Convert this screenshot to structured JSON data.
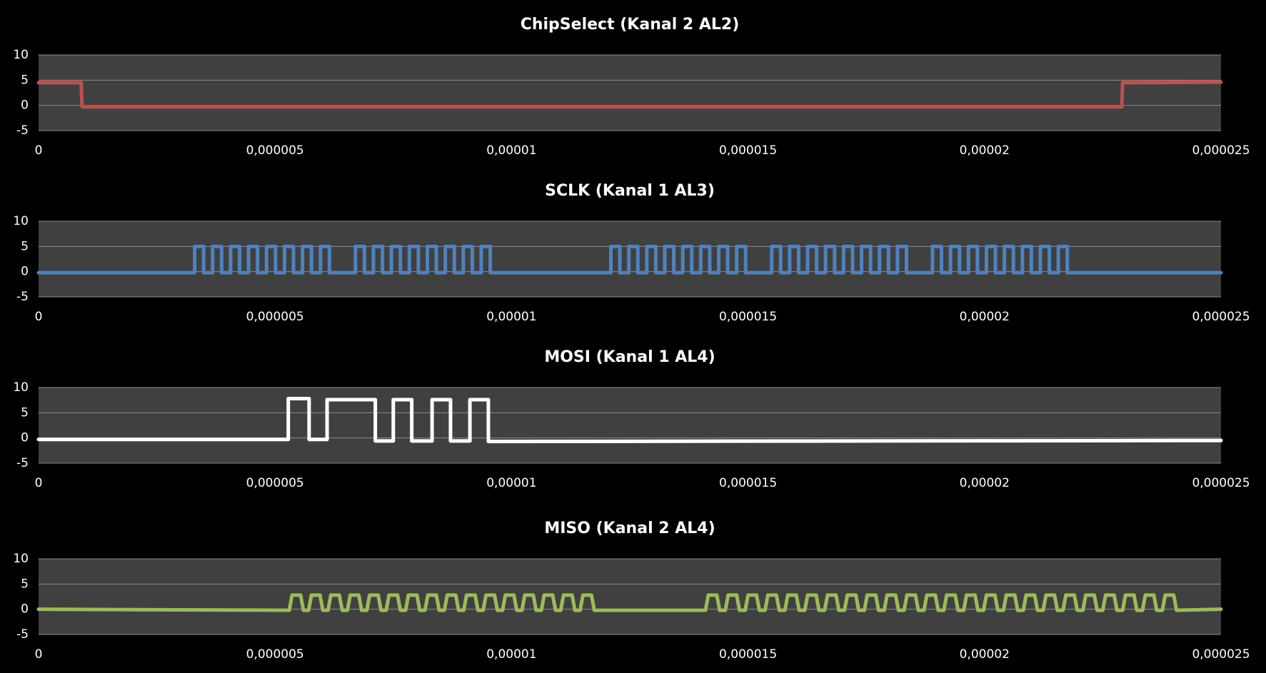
{
  "chart_data": [
    {
      "type": "line",
      "title": "ChipSelect (Kanal 2 AL2)",
      "color": "#c0504d",
      "x": [
        0,
        9e-07,
        9.2e-07,
        2.29e-05,
        2.292e-05,
        2.5e-05
      ],
      "values": [
        4.5,
        4.5,
        -0.3,
        -0.3,
        4.5,
        4.6
      ],
      "xlim": [
        0,
        2.5e-05
      ],
      "ylim": [
        -5,
        10
      ],
      "xticks": [
        0,
        {
          "value": 5e-06,
          "label": "0,000005"
        },
        {
          "value": 1e-05,
          "label": "0,00001"
        },
        {
          "value": 1.5e-05,
          "label": "0,000015"
        },
        {
          "value": 2e-05,
          "label": "0,00002"
        },
        {
          "value": 2.5e-05,
          "label": "0,000025"
        }
      ],
      "yticks": [
        -5,
        0,
        5,
        10
      ],
      "grid": true
    },
    {
      "type": "line",
      "title": "SCLK (Kanal 1 AL3)",
      "color": "#4f81bd",
      "x": [
        0,
        3.3e-06,
        3.3e-06,
        3.49e-06,
        3.49e-06,
        3.68e-06,
        3.68e-06,
        3.87e-06,
        3.87e-06,
        4.06e-06,
        4.06e-06,
        4.25e-06,
        4.25e-06,
        4.44e-06,
        4.44e-06,
        4.63e-06,
        4.63e-06,
        4.82e-06,
        4.82e-06,
        5.01e-06,
        5.01e-06,
        5.2e-06,
        5.2e-06,
        5.39e-06,
        5.39e-06,
        5.58e-06,
        5.58e-06,
        5.77e-06,
        5.77e-06,
        5.96e-06,
        5.96e-06,
        6.15e-06,
        6.15e-06,
        6.7e-06,
        6.7e-06,
        6.89e-06,
        6.89e-06,
        7.08e-06,
        7.08e-06,
        7.27e-06,
        7.27e-06,
        7.46e-06,
        7.46e-06,
        7.65e-06,
        7.65e-06,
        7.84e-06,
        7.84e-06,
        8.03e-06,
        8.03e-06,
        8.22e-06,
        8.22e-06,
        8.41e-06,
        8.41e-06,
        8.6e-06,
        8.6e-06,
        8.79e-06,
        8.79e-06,
        8.98e-06,
        8.98e-06,
        9.17e-06,
        9.17e-06,
        9.36e-06,
        9.36e-06,
        9.55e-06,
        9.55e-06,
        1.21e-05,
        1.21e-05,
        1.229e-05,
        1.229e-05,
        1.248e-05,
        1.248e-05,
        1.267e-05,
        1.267e-05,
        1.286e-05,
        1.286e-05,
        1.305e-05,
        1.305e-05,
        1.324e-05,
        1.324e-05,
        1.343e-05,
        1.343e-05,
        1.362e-05,
        1.362e-05,
        1.381e-05,
        1.381e-05,
        1.4e-05,
        1.4e-05,
        1.419e-05,
        1.419e-05,
        1.438e-05,
        1.438e-05,
        1.457e-05,
        1.457e-05,
        1.476e-05,
        1.476e-05,
        1.495e-05,
        1.495e-05,
        1.55e-05,
        1.55e-05,
        1.569e-05,
        1.569e-05,
        1.588e-05,
        1.588e-05,
        1.607e-05,
        1.607e-05,
        1.626e-05,
        1.626e-05,
        1.645e-05,
        1.645e-05,
        1.664e-05,
        1.664e-05,
        1.683e-05,
        1.683e-05,
        1.702e-05,
        1.702e-05,
        1.721e-05,
        1.721e-05,
        1.74e-05,
        1.74e-05,
        1.759e-05,
        1.759e-05,
        1.778e-05,
        1.778e-05,
        1.797e-05,
        1.797e-05,
        1.816e-05,
        1.816e-05,
        1.835e-05,
        1.835e-05,
        1.89e-05,
        1.89e-05,
        1.909e-05,
        1.909e-05,
        1.928e-05,
        1.928e-05,
        1.947e-05,
        1.947e-05,
        1.966e-05,
        1.966e-05,
        1.985e-05,
        1.985e-05,
        2.004e-05,
        2.004e-05,
        2.023e-05,
        2.023e-05,
        2.042e-05,
        2.042e-05,
        2.061e-05,
        2.061e-05,
        2.08e-05,
        2.08e-05,
        2.099e-05,
        2.099e-05,
        2.118e-05,
        2.118e-05,
        2.137e-05,
        2.137e-05,
        2.156e-05,
        2.156e-05,
        2.175e-05,
        2.175e-05,
        2.5e-05
      ],
      "values": [
        -0.2,
        -0.2,
        5,
        5,
        -0.2,
        -0.2,
        5,
        5,
        -0.2,
        -0.2,
        5,
        5,
        -0.2,
        -0.2,
        5,
        5,
        -0.2,
        -0.2,
        5,
        5,
        -0.2,
        -0.2,
        5,
        5,
        -0.2,
        -0.2,
        5,
        5,
        -0.2,
        -0.2,
        5,
        5,
        -0.2,
        -0.2,
        5,
        5,
        -0.2,
        -0.2,
        5,
        5,
        -0.2,
        -0.2,
        5,
        5,
        -0.2,
        -0.2,
        5,
        5,
        -0.2,
        -0.2,
        5,
        5,
        -0.2,
        -0.2,
        5,
        5,
        -0.2,
        -0.2,
        5,
        5,
        -0.2,
        -0.2,
        5,
        5,
        -0.2,
        -0.2,
        5,
        5,
        -0.2,
        -0.2,
        5,
        5,
        -0.2,
        -0.2,
        5,
        5,
        -0.2,
        -0.2,
        5,
        5,
        -0.2,
        -0.2,
        5,
        5,
        -0.2,
        -0.2,
        5,
        5,
        -0.2,
        -0.2,
        5,
        5,
        -0.2,
        -0.2,
        5,
        5,
        -0.2,
        -0.2,
        5,
        5,
        -0.2,
        -0.2,
        5,
        5,
        -0.2,
        -0.2,
        5,
        5,
        -0.2,
        -0.2,
        5,
        5,
        -0.2,
        -0.2,
        5,
        5,
        -0.2,
        -0.2,
        5,
        5,
        -0.2,
        -0.2,
        5,
        5,
        -0.2,
        -0.2,
        5,
        5,
        -0.2,
        -0.2,
        5,
        5,
        -0.2,
        -0.2,
        5,
        5,
        -0.2,
        -0.2,
        5,
        5,
        -0.2,
        -0.2,
        5,
        5,
        -0.2,
        -0.2,
        5,
        5,
        -0.2,
        -0.2,
        5,
        5,
        -0.2,
        -0.2,
        5,
        5,
        -0.2,
        -0.2,
        5,
        5,
        -0.2,
        -0.2
      ],
      "xlim": [
        0,
        2.5e-05
      ],
      "ylim": [
        -5,
        10
      ],
      "xticks": [
        0,
        {
          "value": 5e-06,
          "label": "0,000005"
        },
        {
          "value": 1e-05,
          "label": "0,00001"
        },
        {
          "value": 1.5e-05,
          "label": "0,000015"
        },
        {
          "value": 2e-05,
          "label": "0,00002"
        },
        {
          "value": 2.5e-05,
          "label": "0,000025"
        }
      ],
      "yticks": [
        -5,
        0,
        5,
        10
      ],
      "grid": true
    },
    {
      "type": "line",
      "title": "MOSI (Kanal 1 AL4)",
      "color": "#ffffff",
      "x": [
        0,
        5.28e-06,
        5.28e-06,
        5.72e-06,
        5.72e-06,
        6.1e-06,
        6.1e-06,
        7.12e-06,
        7.12e-06,
        7.5e-06,
        7.5e-06,
        7.89e-06,
        7.89e-06,
        8.32e-06,
        8.32e-06,
        8.71e-06,
        8.71e-06,
        9.12e-06,
        9.12e-06,
        9.51e-06,
        9.51e-06,
        2.5e-05
      ],
      "values": [
        -0.3,
        -0.3,
        7.8,
        7.8,
        -0.3,
        -0.3,
        7.6,
        7.6,
        -0.6,
        -0.6,
        7.6,
        7.6,
        -0.6,
        -0.6,
        7.6,
        7.6,
        -0.6,
        -0.6,
        7.6,
        7.6,
        -0.7,
        -0.5
      ],
      "xlim": [
        0,
        2.5e-05
      ],
      "ylim": [
        -5,
        10
      ],
      "xticks": [
        0,
        {
          "value": 5e-06,
          "label": "0,000005"
        },
        {
          "value": 1e-05,
          "label": "0,00001"
        },
        {
          "value": 1.5e-05,
          "label": "0,000015"
        },
        {
          "value": 2e-05,
          "label": "0,00002"
        },
        {
          "value": 2.5e-05,
          "label": "0,000025"
        }
      ],
      "yticks": [
        -5,
        0,
        5,
        10
      ],
      "grid": true
    },
    {
      "type": "line",
      "title": "MISO (Kanal 2 AL4)",
      "color": "#9bbb59",
      "x": [
        0,
        5.3e-06,
        5.36e-06,
        5.54e-06,
        5.6e-06,
        5.71e-06,
        5.77e-06,
        5.95e-06,
        6.01e-06,
        6.12e-06,
        6.18e-06,
        6.36e-06,
        6.42e-06,
        6.53e-06,
        6.59e-06,
        6.77e-06,
        6.83e-06,
        6.94e-06,
        7e-06,
        7.18e-06,
        7.24e-06,
        7.35e-06,
        7.41e-06,
        7.59e-06,
        7.65e-06,
        7.76e-06,
        7.82e-06,
        8e-06,
        8.06e-06,
        8.17e-06,
        8.23e-06,
        8.41e-06,
        8.47e-06,
        8.58e-06,
        8.64e-06,
        8.82e-06,
        8.88e-06,
        8.99e-06,
        9.05e-06,
        9.23e-06,
        9.29e-06,
        9.4e-06,
        9.46e-06,
        9.64e-06,
        9.7e-06,
        9.81e-06,
        9.87e-06,
        1.005e-05,
        1.011e-05,
        1.022e-05,
        1.028e-05,
        1.046e-05,
        1.052e-05,
        1.063e-05,
        1.069e-05,
        1.087e-05,
        1.093e-05,
        1.104e-05,
        1.11e-05,
        1.128e-05,
        1.134e-05,
        1.145e-05,
        1.151e-05,
        1.169e-05,
        1.175e-05,
        1.41e-05,
        1.416e-05,
        1.434e-05,
        1.44e-05,
        1.452e-05,
        1.458e-05,
        1.476e-05,
        1.482e-05,
        1.494e-05,
        1.5e-05,
        1.518e-05,
        1.524e-05,
        1.536e-05,
        1.542e-05,
        1.56e-05,
        1.566e-05,
        1.578e-05,
        1.584e-05,
        1.602e-05,
        1.608e-05,
        1.62e-05,
        1.626e-05,
        1.644e-05,
        1.65e-05,
        1.662e-05,
        1.668e-05,
        1.686e-05,
        1.692e-05,
        1.704e-05,
        1.71e-05,
        1.728e-05,
        1.734e-05,
        1.746e-05,
        1.752e-05,
        1.77e-05,
        1.776e-05,
        1.788e-05,
        1.794e-05,
        1.812e-05,
        1.818e-05,
        1.83e-05,
        1.836e-05,
        1.854e-05,
        1.86e-05,
        1.872e-05,
        1.878e-05,
        1.896e-05,
        1.902e-05,
        1.914e-05,
        1.92e-05,
        1.938e-05,
        1.944e-05,
        1.956e-05,
        1.962e-05,
        1.98e-05,
        1.986e-05,
        1.998e-05,
        2.004e-05,
        2.022e-05,
        2.028e-05,
        2.04e-05,
        2.046e-05,
        2.064e-05,
        2.07e-05,
        2.082e-05,
        2.088e-05,
        2.106e-05,
        2.112e-05,
        2.124e-05,
        2.13e-05,
        2.148e-05,
        2.154e-05,
        2.166e-05,
        2.172e-05,
        2.19e-05,
        2.196e-05,
        2.208e-05,
        2.214e-05,
        2.232e-05,
        2.238e-05,
        2.25e-05,
        2.256e-05,
        2.274e-05,
        2.28e-05,
        2.292e-05,
        2.298e-05,
        2.316e-05,
        2.322e-05,
        2.334e-05,
        2.34e-05,
        2.358e-05,
        2.364e-05,
        2.376e-05,
        2.382e-05,
        2.4e-05,
        2.406e-05,
        2.5e-05
      ],
      "values": [
        0,
        -0.2,
        2.8,
        2.8,
        -0.2,
        -0.2,
        2.8,
        2.8,
        -0.2,
        -0.2,
        2.8,
        2.8,
        -0.2,
        -0.2,
        2.8,
        2.8,
        -0.2,
        -0.2,
        2.8,
        2.8,
        -0.2,
        -0.2,
        2.8,
        2.8,
        -0.2,
        -0.2,
        2.8,
        2.8,
        -0.2,
        -0.2,
        2.8,
        2.8,
        -0.2,
        -0.2,
        2.8,
        2.8,
        -0.2,
        -0.2,
        2.8,
        2.8,
        -0.2,
        -0.2,
        2.8,
        2.8,
        -0.2,
        -0.2,
        2.8,
        2.8,
        -0.2,
        -0.2,
        2.8,
        2.8,
        -0.2,
        -0.2,
        2.8,
        2.8,
        -0.2,
        -0.2,
        2.8,
        2.8,
        -0.2,
        -0.2,
        2.8,
        2.8,
        -0.2,
        -0.2,
        2.8,
        2.8,
        -0.2,
        -0.2,
        2.8,
        2.8,
        -0.2,
        -0.2,
        2.8,
        2.8,
        -0.2,
        -0.2,
        2.8,
        2.8,
        -0.2,
        -0.2,
        2.8,
        2.8,
        -0.2,
        -0.2,
        2.8,
        2.8,
        -0.2,
        -0.2,
        2.8,
        2.8,
        -0.2,
        -0.2,
        2.8,
        2.8,
        -0.2,
        -0.2,
        2.8,
        2.8,
        -0.2,
        -0.2,
        2.8,
        2.8,
        -0.2,
        -0.2,
        2.8,
        2.8,
        -0.2,
        -0.2,
        2.8,
        2.8,
        -0.2,
        -0.2,
        2.8,
        2.8,
        -0.2,
        -0.2,
        2.8,
        2.8,
        -0.2,
        -0.2,
        2.8,
        2.8,
        -0.2,
        -0.2,
        2.8,
        2.8,
        -0.2,
        -0.2,
        2.8,
        2.8,
        -0.2,
        -0.2,
        2.8,
        2.8,
        -0.2,
        -0.2,
        2.8,
        2.8,
        -0.2,
        -0.2,
        2.8,
        2.8,
        -0.2,
        -0.2,
        2.8,
        2.8,
        -0.2,
        -0.2,
        2.8,
        2.8,
        -0.2,
        -0.2,
        2.8,
        2.8,
        -0.2,
        -0.2,
        2.8,
        2.8,
        -0.2,
        0
      ],
      "xlim": [
        0,
        2.5e-05
      ],
      "ylim": [
        -5,
        10
      ],
      "xticks": [
        0,
        {
          "value": 5e-06,
          "label": "0,000005"
        },
        {
          "value": 1e-05,
          "label": "0,00001"
        },
        {
          "value": 1.5e-05,
          "label": "0,000015"
        },
        {
          "value": 2e-05,
          "label": "0,00002"
        },
        {
          "value": 2.5e-05,
          "label": "0,000025"
        }
      ],
      "yticks": [
        -5,
        0,
        5,
        10
      ],
      "grid": true
    }
  ]
}
